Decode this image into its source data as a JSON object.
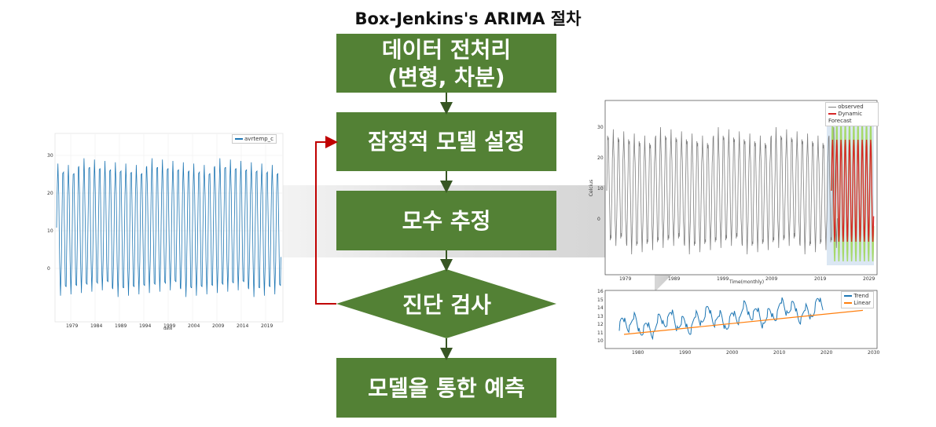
{
  "title": "Box-Jenkins's ARIMA 절차",
  "flow": {
    "step1": "데이터 전처리\n(변형, 차분)",
    "step2": "잠정적 모델 설정",
    "step3": "모수 추정",
    "step4": "진단 검사",
    "step5": "모델을 통한 예측"
  },
  "colors": {
    "box": "#538135",
    "arrow": "#375623",
    "feedback": "#c00000"
  },
  "left_chart": {
    "legend": "avrtemp_c",
    "x_ticks": [
      "1979",
      "1984",
      "1989",
      "1994",
      "1999",
      "2004",
      "2009",
      "2014",
      "2019"
    ],
    "y_ticks": [
      "30",
      "20",
      "10",
      "0"
    ],
    "xlabel": "date"
  },
  "forecast_chart": {
    "legend": [
      "observed",
      "Dynamic Forecast"
    ],
    "x_ticks": [
      "1979",
      "1989",
      "1999",
      "2009",
      "2019",
      "2029"
    ],
    "y_ticks": [
      "30",
      "20",
      "10",
      "0"
    ],
    "xlabel": "Time(monthly)",
    "ylabel": "Celcius"
  },
  "trend_chart": {
    "legend": [
      "Trend",
      "Linear"
    ],
    "x_ticks": [
      "1980",
      "1990",
      "2000",
      "2010",
      "2020",
      "2030"
    ],
    "y_ticks": [
      "16",
      "15",
      "14",
      "13",
      "12",
      "11",
      "10"
    ]
  }
}
